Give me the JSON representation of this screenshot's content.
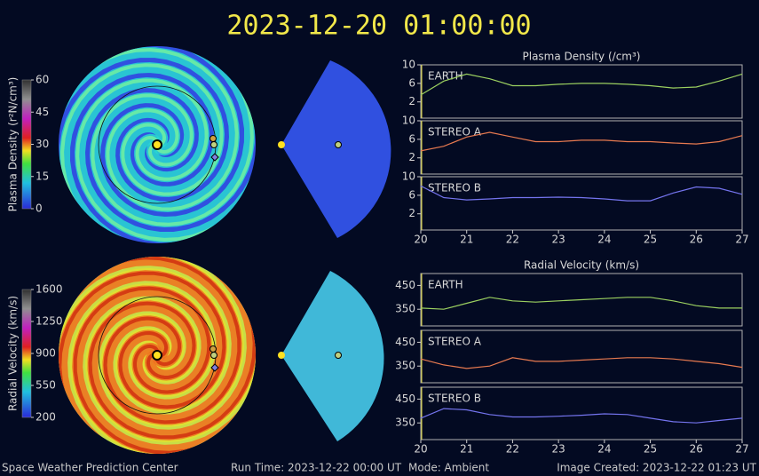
{
  "header": {
    "title": "2023-12-20  01:00:00"
  },
  "footer": {
    "center": "Space Weather Prediction Center",
    "run_time": "Run Time: 2023-12-22 00:00 UT",
    "mode": "Mode: Ambient",
    "created": "Image Created: 2023-12-22 01:23 UT"
  },
  "chart_data": [
    {
      "type": "line",
      "title": "Plasma Density (/cm³)",
      "x": [
        20,
        20.5,
        21,
        21.5,
        22,
        22.5,
        23,
        23.5,
        24,
        24.5,
        25,
        25.5,
        26,
        26.5,
        27
      ],
      "xlim": [
        20,
        27
      ],
      "xticks": [
        20,
        21,
        22,
        23,
        24,
        25,
        26,
        27
      ],
      "ylim": [
        -1.5,
        10
      ],
      "yticks": [
        2,
        6,
        10
      ],
      "colorbar": {
        "label": "Plasma Density (r²N/cm³)",
        "lim": [
          0,
          60
        ],
        "ticks": [
          0,
          15,
          30,
          45,
          60
        ]
      },
      "series": [
        {
          "name": "EARTH",
          "color": "#9bd060",
          "values": [
            3.5,
            6.5,
            8,
            7,
            5.5,
            5.5,
            5.8,
            6,
            6,
            5.8,
            5.5,
            5,
            5.2,
            6.5,
            8
          ]
        },
        {
          "name": "STEREO A",
          "color": "#e87a50",
          "values": [
            3.5,
            4.5,
            6.5,
            7.5,
            6.5,
            5.5,
            5.5,
            5.8,
            5.8,
            5.5,
            5.5,
            5.2,
            5,
            5.5,
            6.8
          ]
        },
        {
          "name": "STEREO B",
          "color": "#7474ee",
          "values": [
            8,
            5.5,
            5,
            5.2,
            5.5,
            5.5,
            5.6,
            5.5,
            5.2,
            4.8,
            4.8,
            6.5,
            7.8,
            7.5,
            6.2
          ]
        }
      ]
    },
    {
      "type": "line",
      "title": "Radial Velocity (km/s)",
      "x": [
        20,
        20.5,
        21,
        21.5,
        22,
        22.5,
        23,
        23.5,
        24,
        24.5,
        25,
        25.5,
        26,
        26.5,
        27
      ],
      "xlim": [
        20,
        27
      ],
      "xticks": [
        20,
        21,
        22,
        23,
        24,
        25,
        26,
        27
      ],
      "ylim": [
        280,
        500
      ],
      "yticks": [
        350,
        450
      ],
      "colorbar": {
        "label": "Radial Velocity (km/s)",
        "lim": [
          200,
          1600
        ],
        "ticks": [
          200,
          550,
          900,
          1250,
          1600
        ]
      },
      "series": [
        {
          "name": "EARTH",
          "color": "#9bd060",
          "values": [
            355,
            350,
            375,
            400,
            385,
            380,
            385,
            390,
            395,
            400,
            400,
            385,
            365,
            355,
            355
          ]
        },
        {
          "name": "STEREO A",
          "color": "#e87a50",
          "values": [
            380,
            355,
            340,
            350,
            385,
            370,
            370,
            375,
            380,
            385,
            385,
            380,
            370,
            360,
            345
          ]
        },
        {
          "name": "STEREO B",
          "color": "#7474ee",
          "values": [
            370,
            410,
            405,
            385,
            375,
            375,
            378,
            382,
            388,
            385,
            370,
            355,
            350,
            360,
            370
          ]
        }
      ]
    }
  ]
}
